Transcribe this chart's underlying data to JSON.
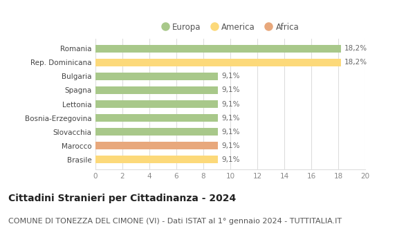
{
  "categories": [
    "Brasile",
    "Marocco",
    "Slovacchia",
    "Bosnia-Erzegovina",
    "Lettonia",
    "Spagna",
    "Bulgaria",
    "Rep. Dominicana",
    "Romania"
  ],
  "values": [
    9.1,
    9.1,
    9.1,
    9.1,
    9.1,
    9.1,
    9.1,
    18.2,
    18.2
  ],
  "colors": [
    "#fcd97a",
    "#e8a87c",
    "#a8c88a",
    "#a8c88a",
    "#a8c88a",
    "#a8c88a",
    "#a8c88a",
    "#fcd97a",
    "#a8c88a"
  ],
  "labels": [
    "9,1%",
    "9,1%",
    "9,1%",
    "9,1%",
    "9,1%",
    "9,1%",
    "9,1%",
    "18,2%",
    "18,2%"
  ],
  "xlim": [
    0,
    20
  ],
  "xticks": [
    0,
    2,
    4,
    6,
    8,
    10,
    12,
    14,
    16,
    18,
    20
  ],
  "legend": {
    "Europa": "#a8c88a",
    "America": "#fcd97a",
    "Africa": "#e8a87c"
  },
  "title": "Cittadini Stranieri per Cittadinanza - 2024",
  "subtitle": "COMUNE DI TONEZZA DEL CIMONE (VI) - Dati ISTAT al 1° gennaio 2024 - TUTTITALIA.IT",
  "title_fontsize": 10,
  "subtitle_fontsize": 8,
  "background_color": "#ffffff",
  "bar_height": 0.55,
  "grid_color": "#dddddd",
  "label_color": "#666666",
  "tick_color": "#888888"
}
